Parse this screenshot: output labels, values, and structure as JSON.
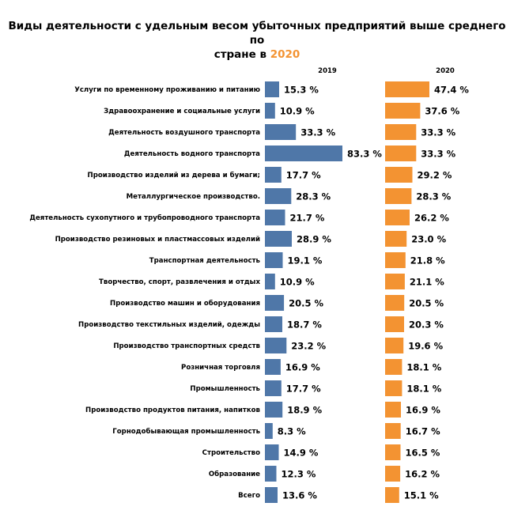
{
  "chart_data": {
    "type": "bar",
    "title_line1": "Виды деятельности с удельным весом убыточных предприятий выше среднего по",
    "title_line2_prefix": "стране в",
    "title_line2_highlight": "2020",
    "categories": [
      "Услуги по временному проживанию и питанию",
      "Здравоохранение и социальные услуги",
      "Деятельность воздушного транспорта",
      "Деятельность водного транспорта",
      "Производство изделий из дерева и бумаги;",
      "Металлургическое производство.",
      "Деятельность сухопутного и трубопроводного транспорта",
      "Производство резиновых и пластмассовых изделий",
      "Транспортная деятельность",
      "Творчество, спорт, развлечения и отдых",
      "Производство машин и оборудования",
      "Производство текстильных изделий, одежды",
      "Производство транспортных средств",
      "Розничная торговля",
      "Промышленность",
      "Производство продуктов питания, напитков",
      "Горнодобывающая промышленность",
      "Строительство",
      "Образование",
      "Всего"
    ],
    "series": [
      {
        "name": "2019",
        "color": "#4f77a8",
        "values": [
          15.3,
          10.9,
          33.3,
          83.3,
          17.7,
          28.3,
          21.7,
          28.9,
          19.1,
          10.9,
          20.5,
          18.7,
          23.2,
          16.9,
          17.7,
          18.9,
          8.3,
          14.9,
          12.3,
          13.6
        ],
        "labels": [
          "15.3 %",
          "10.9 %",
          "33.3 %",
          "83.3 %",
          "17.7 %",
          "28.3 %",
          "21.7 %",
          "28.9 %",
          "19.1 %",
          "10.9 %",
          "20.5 %",
          "18.7 %",
          "23.2 %",
          "16.9 %",
          "17.7 %",
          "18.9 %",
          "8.3 %",
          "14.9 %",
          "12.3 %",
          "13.6 %"
        ]
      },
      {
        "name": "2020",
        "color": "#f39332",
        "values": [
          47.4,
          37.6,
          33.3,
          33.3,
          29.2,
          28.3,
          26.2,
          23.0,
          21.8,
          21.1,
          20.5,
          20.3,
          19.6,
          18.1,
          18.1,
          16.9,
          16.7,
          16.5,
          16.2,
          15.1
        ],
        "labels": [
          "47.4 %",
          "37.6 %",
          "33.3 %",
          "33.3 %",
          "29.2 %",
          "28.3 %",
          "26.2 %",
          "23.0 %",
          "21.8 %",
          "21.1 %",
          "20.5 %",
          "20.3 %",
          "19.6 %",
          "18.1 %",
          "18.1 %",
          "16.9 %",
          "16.7 %",
          "16.5 %",
          "16.2 %",
          "15.1 %"
        ]
      }
    ],
    "xlim": [
      0,
      100
    ],
    "grid": false,
    "legend": "none"
  }
}
